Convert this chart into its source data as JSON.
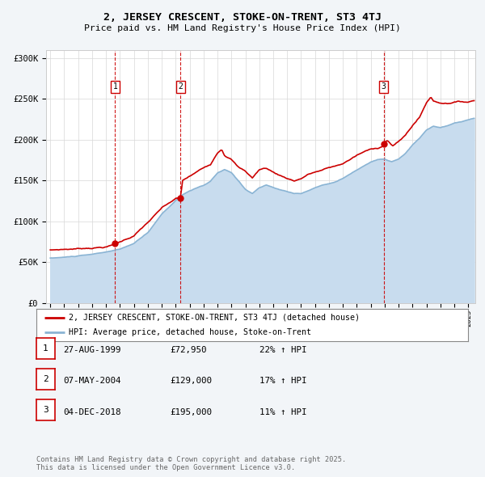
{
  "title": "2, JERSEY CRESCENT, STOKE-ON-TRENT, ST3 4TJ",
  "subtitle": "Price paid vs. HM Land Registry's House Price Index (HPI)",
  "legend_label_red": "2, JERSEY CRESCENT, STOKE-ON-TRENT, ST3 4TJ (detached house)",
  "legend_label_blue": "HPI: Average price, detached house, Stoke-on-Trent",
  "footer": "Contains HM Land Registry data © Crown copyright and database right 2025.\nThis data is licensed under the Open Government Licence v3.0.",
  "sales": [
    {
      "num": 1,
      "date_x": 1999.65,
      "price": 72950,
      "label": "27-AUG-1999",
      "price_label": "£72,950",
      "hpi_label": "22% ↑ HPI"
    },
    {
      "num": 2,
      "date_x": 2004.35,
      "price": 129000,
      "label": "07-MAY-2004",
      "price_label": "£129,000",
      "hpi_label": "17% ↑ HPI"
    },
    {
      "num": 3,
      "date_x": 2018.92,
      "price": 195000,
      "label": "04-DEC-2018",
      "price_label": "£195,000",
      "hpi_label": "11% ↑ HPI"
    }
  ],
  "ylim": [
    0,
    310000
  ],
  "yticks": [
    0,
    50000,
    100000,
    150000,
    200000,
    250000,
    300000
  ],
  "ytick_labels": [
    "£0",
    "£50K",
    "£100K",
    "£150K",
    "£200K",
    "£250K",
    "£300K"
  ],
  "xlim_start": 1994.7,
  "xlim_end": 2025.5,
  "background_color": "#f2f5f8",
  "plot_bg_color": "#ffffff",
  "red_color": "#cc0000",
  "blue_color": "#8ab4d4",
  "blue_fill_color": "#c8dcee",
  "title_fontsize": 9.5,
  "subtitle_fontsize": 8.5
}
